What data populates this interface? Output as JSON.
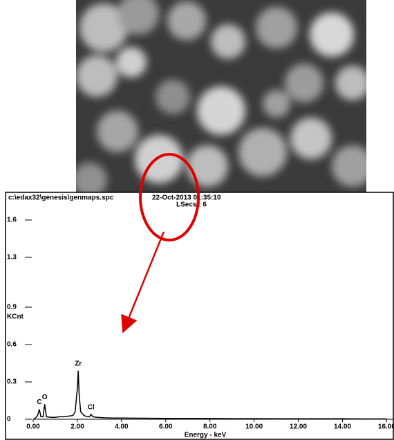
{
  "chart_data": {
    "type": "line",
    "title": "c:\\edax32\\genesis\\genmaps.spc",
    "date": "22-Oct-2013 01:35:10",
    "subtitle": "LSecs : 6",
    "y_label": "KCnt",
    "x_label": "Energy - keV",
    "xlim": [
      0,
      16.3
    ],
    "ylim": [
      0,
      1.7
    ],
    "xticks": [
      {
        "value": 0,
        "label": "0.00"
      },
      {
        "value": 2,
        "label": "2.00"
      },
      {
        "value": 4,
        "label": "4.00"
      },
      {
        "value": 6,
        "label": "6.00"
      },
      {
        "value": 8,
        "label": "8.00"
      },
      {
        "value": 10,
        "label": "10.00"
      },
      {
        "value": 12,
        "label": "12.00"
      },
      {
        "value": 14,
        "label": "14.00"
      },
      {
        "value": 16,
        "label": "16.00"
      }
    ],
    "yticks": [
      0,
      0.3,
      0.6,
      0.9,
      1.3,
      1.6
    ],
    "series": [
      {
        "color": "#000000",
        "x": [
          0,
          0.1,
          0.2,
          0.28,
          0.35,
          0.45,
          0.52,
          0.6,
          0.8,
          1.0,
          1.2,
          1.4,
          1.6,
          1.8,
          1.9,
          2.0,
          2.04,
          2.08,
          2.15,
          2.3,
          2.45,
          2.55,
          2.62,
          2.7,
          2.9,
          3.2,
          3.6,
          4.0,
          5,
          6,
          7,
          8,
          9,
          10,
          11,
          12,
          13,
          14,
          15,
          16
        ],
        "values": [
          0,
          0.01,
          0.03,
          0.08,
          0.02,
          0.02,
          0.12,
          0.02,
          0.015,
          0.015,
          0.02,
          0.02,
          0.025,
          0.03,
          0.06,
          0.25,
          0.39,
          0.2,
          0.06,
          0.03,
          0.02,
          0.02,
          0.04,
          0.02,
          0.015,
          0.012,
          0.01,
          0.01,
          0.008,
          0.007,
          0.006,
          0.006,
          0.005,
          0.005,
          0.004,
          0.004,
          0.004,
          0.004,
          0.003,
          0.003
        ]
      }
    ],
    "annotations": [
      {
        "text": "C",
        "x": 0.28,
        "y": 0.08
      },
      {
        "text": "O",
        "x": 0.52,
        "y": 0.12
      },
      {
        "text": "Zr",
        "x": 2.04,
        "y": 0.39
      },
      {
        "text": "Cl",
        "x": 2.62,
        "y": 0.04
      }
    ]
  }
}
